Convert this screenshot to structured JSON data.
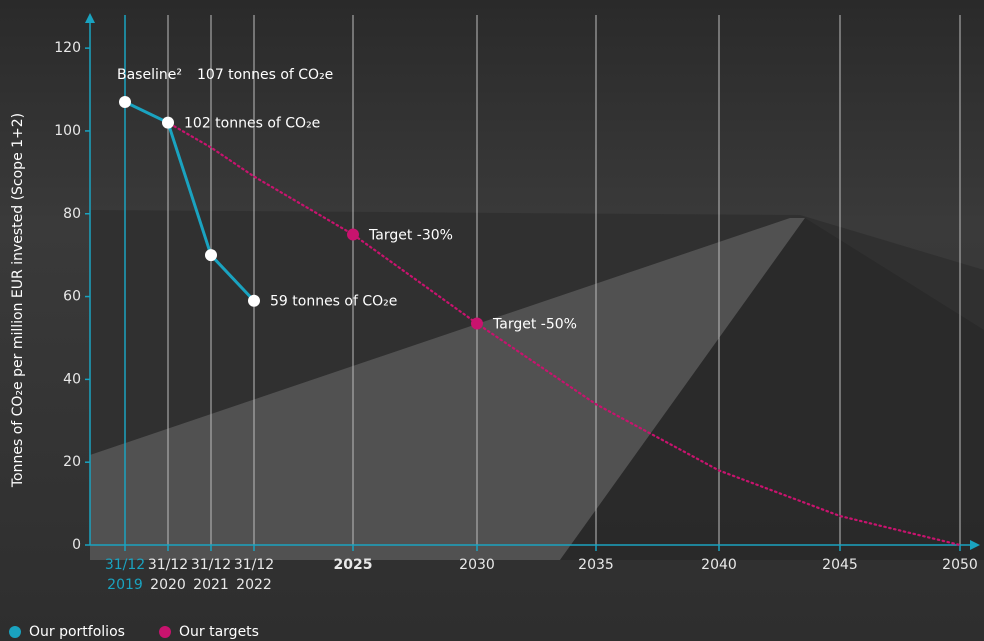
{
  "chart_data": {
    "type": "line",
    "y_label": "Tonnes of CO₂e per million EUR invested (Scope 1+2)",
    "categories": [
      "31/12 2019",
      "31/12 2020",
      "31/12 2021",
      "31/12 2022",
      "2025",
      "2030",
      "2035",
      "2040",
      "2045",
      "2050"
    ],
    "ylim": [
      0,
      128
    ],
    "yticks": [
      0,
      20,
      40,
      60,
      80,
      100,
      120
    ],
    "grid": true,
    "annotation": "Baseline²",
    "series": [
      {
        "name": "Our portfolios",
        "color": "#1aa3c0",
        "style": "solid",
        "values": [
          107,
          102,
          70,
          59,
          null,
          null,
          null,
          null,
          null,
          null
        ],
        "value_labels": [
          "107 tonnes of CO₂e",
          "102 tonnes of CO₂e",
          null,
          "59 tonnes of CO₂e",
          null,
          null,
          null,
          null,
          null,
          null
        ]
      },
      {
        "name": "Our targets",
        "color": "#c8136e",
        "style": "dotted",
        "values": [
          107,
          102,
          96,
          89,
          75,
          53.5,
          34,
          18,
          7,
          0
        ],
        "value_labels": [
          null,
          null,
          null,
          null,
          "Target -30%",
          "Target -50%",
          null,
          null,
          null,
          null
        ]
      }
    ]
  }
}
